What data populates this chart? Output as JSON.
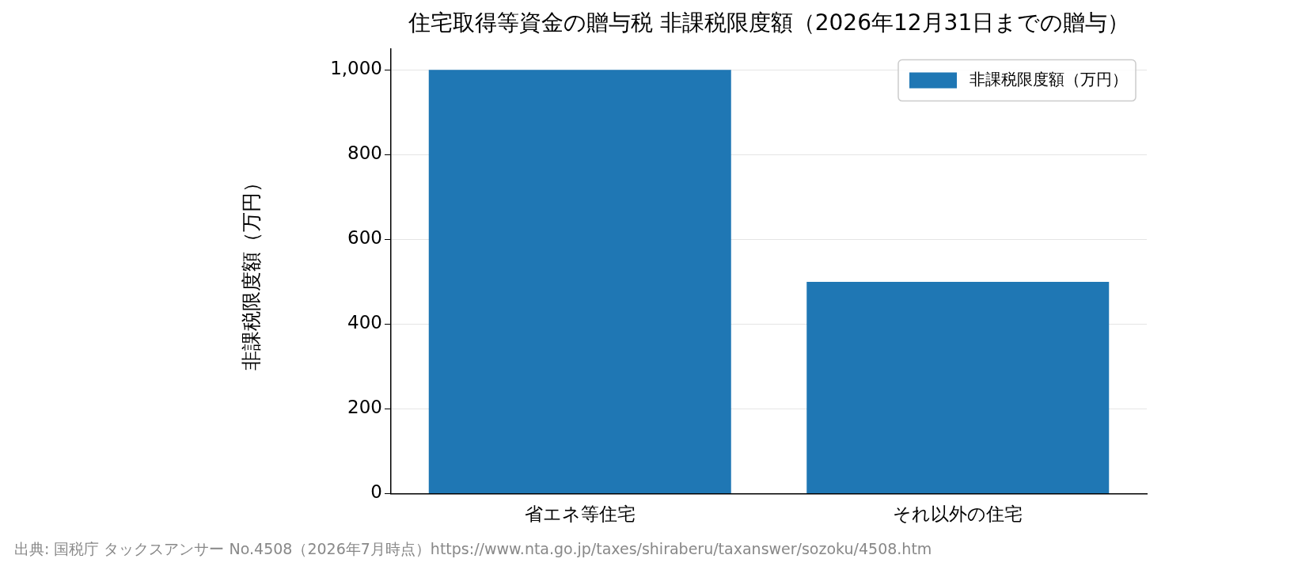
{
  "chart_data": {
    "type": "bar",
    "title": "住宅取得等資金の贈与税 非課税限度額（2026年12月31日までの贈与）",
    "ylabel": "非課税限度額（万円）",
    "categories": [
      "省エネ等住宅",
      "それ以外の住宅"
    ],
    "series": [
      {
        "name": "非課税限度額（万円）",
        "color": "#1f77b4",
        "values": [
          1000,
          500
        ]
      }
    ],
    "ylim": [
      0,
      1050
    ],
    "yticks": [
      0,
      200,
      400,
      600,
      800,
      {
        "value": 1000,
        "label": "1,000"
      }
    ],
    "grid": "y",
    "legend": "top right",
    "annotations": [
      "出典: 国税庁 タックスアンサー No.4508（2026年7月時点）https://www.nta.go.jp/taxes/shiraberu/taxanswer/sozoku/4508.htm"
    ]
  }
}
